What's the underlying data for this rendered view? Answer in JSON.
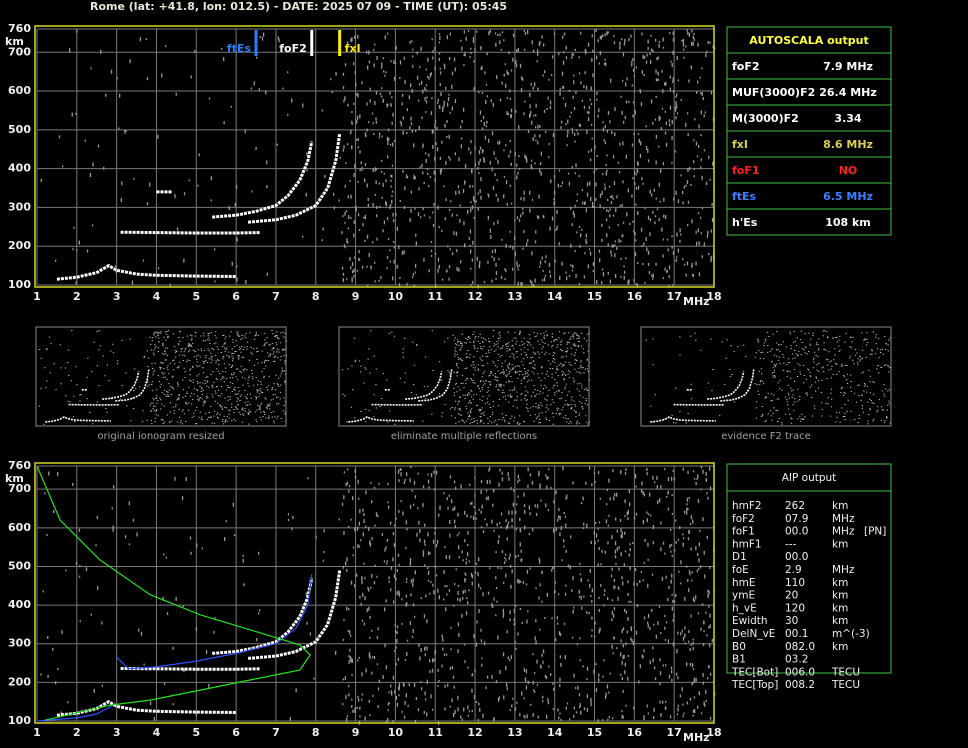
{
  "header": "Rome (lat: +41.8, lon: 012.5) - DATE: 2025 07 09 - TIME (UT): 05:45",
  "ionogram": {
    "type": "scatter",
    "xlim": [
      1,
      18
    ],
    "xticks": [
      1,
      2,
      3,
      4,
      5,
      6,
      7,
      8,
      9,
      10,
      11,
      12,
      13,
      14,
      15,
      16,
      17,
      18
    ],
    "ylim": [
      100,
      760
    ],
    "yticks": [
      100,
      200,
      300,
      400,
      500,
      600,
      700,
      760
    ],
    "x_label": "MHz",
    "y_label": "km",
    "grid": true,
    "markers": [
      {
        "label": "ftEs",
        "value": 6.5,
        "color": "#2a7fff",
        "side": "left"
      },
      {
        "label": "foF2",
        "value": 7.9,
        "color": "#ffffff",
        "side": "left"
      },
      {
        "label": "fxI",
        "value": 8.6,
        "color": "#ffee00",
        "side": "right"
      }
    ],
    "traces": [
      {
        "x": [
          1.5,
          2,
          2.5,
          2.8,
          3,
          3.5,
          4,
          5,
          6
        ],
        "y": [
          115,
          120,
          132,
          150,
          138,
          128,
          125,
          123,
          122
        ],
        "color": "#ffffff",
        "style": "dots"
      },
      {
        "x": [
          3.1,
          4,
          5,
          6,
          6.6
        ],
        "y": [
          236,
          235,
          234,
          234,
          235
        ],
        "color": "#ffffff",
        "style": "dots"
      },
      {
        "x": [
          4,
          4.4
        ],
        "y": [
          340,
          340
        ],
        "color": "#ffffff",
        "style": "dots"
      },
      {
        "x": [
          5.4,
          6,
          6.5,
          7,
          7.3,
          7.6,
          7.8,
          7.9
        ],
        "y": [
          275,
          280,
          290,
          305,
          330,
          370,
          420,
          470
        ],
        "color": "#ffffff",
        "style": "dots"
      },
      {
        "x": [
          6.3,
          7,
          7.5,
          8,
          8.3,
          8.5,
          8.6
        ],
        "y": [
          262,
          268,
          280,
          305,
          350,
          420,
          490
        ],
        "color": "#ffffff",
        "style": "dots"
      }
    ]
  },
  "autoscala": {
    "title": "AUTOSCALA output",
    "rows": [
      {
        "label": "foF2",
        "value": "7.9 MHz",
        "color": "#ffffff"
      },
      {
        "label": "MUF(3000)F2",
        "value": "26.4 MHz",
        "color": "#ffffff"
      },
      {
        "label": "M(3000)F2",
        "value": "3.34",
        "color": "#ffffff"
      },
      {
        "label": "fxI",
        "value": "8.6 MHz",
        "color": "#d8d050"
      },
      {
        "label": "foF1",
        "value": "NO",
        "color": "#ff2020"
      },
      {
        "label": "ftEs",
        "value": "6.5 MHz",
        "color": "#3a80ff"
      },
      {
        "label": "h'Es",
        "value": "108    km",
        "color": "#ffffff"
      }
    ]
  },
  "thumbnails": [
    "original ionogram resized",
    "eliminate multiple reflections",
    "evidence F2 trace"
  ],
  "aip_ionogram": {
    "type": "scatter",
    "xlim": [
      1,
      18
    ],
    "xticks": [
      1,
      2,
      3,
      4,
      5,
      6,
      7,
      8,
      9,
      10,
      11,
      12,
      13,
      14,
      15,
      16,
      17,
      18
    ],
    "ylim": [
      100,
      760
    ],
    "yticks": [
      100,
      200,
      300,
      400,
      500,
      600,
      700,
      760
    ],
    "x_label": "MHz",
    "y_label": "km",
    "grid": true,
    "traces": [
      {
        "x": [
          1.5,
          2,
          2.5,
          2.8,
          3,
          3.5,
          4,
          5,
          6
        ],
        "y": [
          115,
          120,
          132,
          150,
          138,
          128,
          125,
          123,
          122
        ],
        "color": "#ffffff",
        "style": "dots"
      },
      {
        "x": [
          3.1,
          4,
          5,
          6,
          6.6
        ],
        "y": [
          236,
          235,
          234,
          234,
          235
        ],
        "color": "#ffffff",
        "style": "dots"
      },
      {
        "x": [
          5.4,
          6,
          6.5,
          7,
          7.3,
          7.6,
          7.8,
          7.9
        ],
        "y": [
          275,
          280,
          290,
          305,
          330,
          370,
          420,
          470
        ],
        "color": "#ffffff",
        "style": "dots"
      },
      {
        "x": [
          6.3,
          7,
          7.5,
          8,
          8.3,
          8.5,
          8.6
        ],
        "y": [
          262,
          268,
          280,
          305,
          350,
          420,
          490
        ],
        "color": "#ffffff",
        "style": "dots"
      },
      {
        "x": [
          1,
          2,
          2.5,
          2.9
        ],
        "y": [
          100,
          108,
          118,
          140
        ],
        "color": "#3050ff",
        "style": "line"
      },
      {
        "x": [
          3,
          3.3,
          4,
          5,
          6,
          7,
          7.5,
          7.8,
          7.9
        ],
        "y": [
          265,
          235,
          240,
          255,
          275,
          300,
          340,
          400,
          480
        ],
        "color": "#3050ff",
        "style": "line"
      },
      {
        "x": [
          1,
          1.58,
          2.58,
          3.84,
          5.1,
          6.35,
          7.6,
          7.86,
          7.6,
          6.35,
          5.1,
          3.84,
          2.83,
          2.08,
          1.2
        ],
        "y": [
          760,
          620,
          517,
          427,
          375,
          336,
          297,
          271,
          232,
          206,
          180,
          154,
          141,
          123,
          102
        ],
        "color": "#20e020",
        "style": "line"
      }
    ]
  },
  "aip": {
    "title": "AIP output",
    "rows": [
      [
        "hmF2",
        "262",
        "km"
      ],
      [
        "foF2",
        "07.9",
        "MHz"
      ],
      [
        "foF1",
        "00.0",
        "MHz",
        "[PN]"
      ],
      [
        "hmF1",
        "---",
        "km"
      ],
      [
        "D1",
        "00.0"
      ],
      [
        "foE",
        "2.9",
        "MHz"
      ],
      [
        "hmE",
        "110",
        "km"
      ],
      [
        "ymE",
        "20",
        "km"
      ],
      [
        "h_vE",
        "120",
        "km"
      ],
      [
        "Ewidth",
        "30",
        "km"
      ],
      [
        "DelN_vE",
        "00.1",
        "m^(-3)"
      ],
      [
        "B0",
        "082.0",
        "km"
      ],
      [
        "B1",
        "03.2"
      ],
      [
        "TEC[Bot]",
        "006.0",
        "TECU"
      ],
      [
        "TEC[Top]",
        "008.2",
        "TECU"
      ]
    ]
  }
}
